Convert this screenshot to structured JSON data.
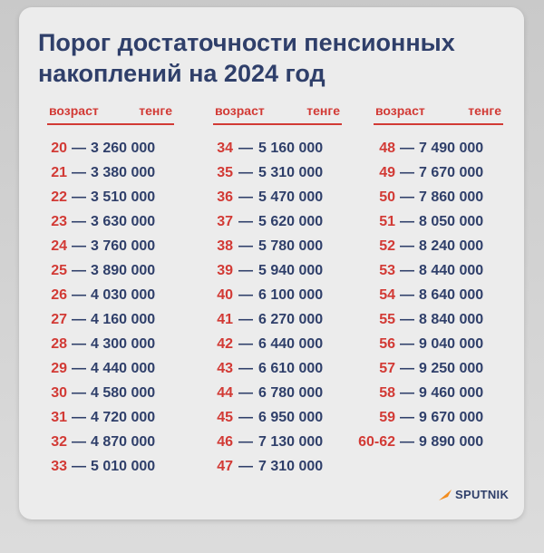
{
  "title_line1": "Порог достаточности пенсионных",
  "title_line2": "накоплений на 2024 год",
  "headers": {
    "age": "возраст",
    "amount": "тенге"
  },
  "columns": [
    [
      {
        "age": "20",
        "amount": "3 260 000"
      },
      {
        "age": "21",
        "amount": "3 380 000"
      },
      {
        "age": "22",
        "amount": "3 510 000"
      },
      {
        "age": "23",
        "amount": "3 630 000"
      },
      {
        "age": "24",
        "amount": "3 760 000"
      },
      {
        "age": "25",
        "amount": "3 890 000"
      },
      {
        "age": "26",
        "amount": "4 030 000"
      },
      {
        "age": "27",
        "amount": "4 160 000"
      },
      {
        "age": "28",
        "amount": "4 300 000"
      },
      {
        "age": "29",
        "amount": "4 440 000"
      },
      {
        "age": "30",
        "amount": "4 580 000"
      },
      {
        "age": "31",
        "amount": "4 720 000"
      },
      {
        "age": "32",
        "amount": "4 870 000"
      },
      {
        "age": "33",
        "amount": "5 010 000"
      }
    ],
    [
      {
        "age": "34",
        "amount": "5 160 000"
      },
      {
        "age": "35",
        "amount": "5 310 000"
      },
      {
        "age": "36",
        "amount": "5 470 000"
      },
      {
        "age": "37",
        "amount": "5 620 000"
      },
      {
        "age": "38",
        "amount": "5 780 000"
      },
      {
        "age": "39",
        "amount": "5 940 000"
      },
      {
        "age": "40",
        "amount": "6 100 000"
      },
      {
        "age": "41",
        "amount": "6 270 000"
      },
      {
        "age": "42",
        "amount": "6 440 000"
      },
      {
        "age": "43",
        "amount": "6 610 000"
      },
      {
        "age": "44",
        "amount": "6 780 000"
      },
      {
        "age": "45",
        "amount": "6 950 000"
      },
      {
        "age": "46",
        "amount": "7 130 000"
      },
      {
        "age": "47",
        "amount": "7 310 000"
      }
    ],
    [
      {
        "age": "48",
        "amount": "7 490 000"
      },
      {
        "age": "49",
        "amount": "7 670 000"
      },
      {
        "age": "50",
        "amount": "7 860 000"
      },
      {
        "age": "51",
        "amount": "8 050 000"
      },
      {
        "age": "52",
        "amount": "8 240 000"
      },
      {
        "age": "53",
        "amount": "8 440 000"
      },
      {
        "age": "54",
        "amount": "8 640 000"
      },
      {
        "age": "55",
        "amount": "8 840 000"
      },
      {
        "age": "56",
        "amount": "9 040 000"
      },
      {
        "age": "57",
        "amount": "9 250 000"
      },
      {
        "age": "58",
        "amount": "9 460 000"
      },
      {
        "age": "59",
        "amount": "9 670 000"
      },
      {
        "age": "60-62",
        "amount": "9 890 000"
      }
    ]
  ],
  "dash": "—",
  "logo_text": "SPUTNIK",
  "colors": {
    "accent_red": "#d23a35",
    "navy": "#2f3f6a",
    "logo_orange": "#f28c1e"
  }
}
